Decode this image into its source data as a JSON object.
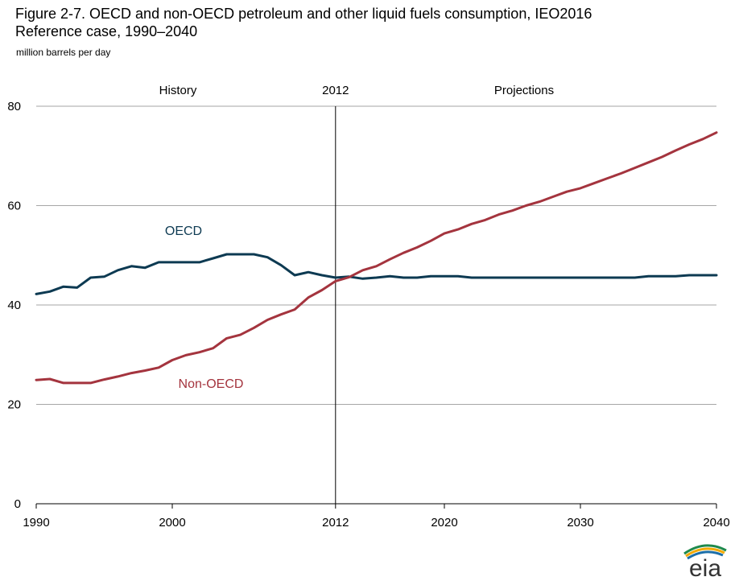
{
  "title_line1": "Figure 2-7. OECD and non-OECD petroleum and other liquid fuels consumption, IEO2016",
  "title_line2": "Reference case, 1990–2040",
  "units": "million barrels per day",
  "logo_text": "eia",
  "colors": {
    "oecd": "#0d3a52",
    "non_oecd": "#a4343e",
    "grid": "#a6a6a6",
    "axis": "#000000"
  },
  "chart_data": {
    "type": "line",
    "xlim": [
      1990,
      2040
    ],
    "ylim": [
      0,
      80
    ],
    "x_ticks": [
      "1990",
      "2000",
      "2012",
      "2020",
      "2030",
      "2040"
    ],
    "y_ticks": [
      "0",
      "20",
      "40",
      "60",
      "80"
    ],
    "grid": "horizontal",
    "divider": {
      "x": 2012,
      "label": "2012",
      "left_label": "History",
      "right_label": "Projections"
    },
    "x": [
      1990,
      1991,
      1992,
      1993,
      1994,
      1995,
      1996,
      1997,
      1998,
      1999,
      2000,
      2001,
      2002,
      2003,
      2004,
      2005,
      2006,
      2007,
      2008,
      2009,
      2010,
      2011,
      2012,
      2013,
      2014,
      2015,
      2016,
      2017,
      2018,
      2019,
      2020,
      2021,
      2022,
      2023,
      2024,
      2025,
      2026,
      2027,
      2028,
      2029,
      2030,
      2031,
      2032,
      2033,
      2034,
      2035,
      2036,
      2037,
      2038,
      2039,
      2040
    ],
    "series": [
      {
        "name": "OECD",
        "values": [
          42.2,
          42.7,
          43.7,
          43.5,
          45.5,
          45.7,
          47.0,
          47.8,
          47.5,
          48.6,
          48.6,
          48.6,
          48.6,
          49.4,
          50.2,
          50.2,
          50.2,
          49.6,
          48.0,
          46.0,
          46.6,
          46.0,
          45.5,
          45.7,
          45.3,
          45.5,
          45.8,
          45.5,
          45.5,
          45.8,
          45.8,
          45.8,
          45.5,
          45.5,
          45.5,
          45.5,
          45.5,
          45.5,
          45.5,
          45.5,
          45.5,
          45.5,
          45.5,
          45.5,
          45.5,
          45.8,
          45.8,
          45.8,
          46.0,
          46.0,
          46.0
        ]
      },
      {
        "name": "Non-OECD",
        "values": [
          24.9,
          25.1,
          24.3,
          24.3,
          24.3,
          25.0,
          25.6,
          26.3,
          26.8,
          27.4,
          28.9,
          29.9,
          30.5,
          31.3,
          33.3,
          34.0,
          35.4,
          37.0,
          38.1,
          39.1,
          41.5,
          43.0,
          44.8,
          45.6,
          47.0,
          47.8,
          49.2,
          50.5,
          51.6,
          52.9,
          54.4,
          55.2,
          56.3,
          57.1,
          58.2,
          59.0,
          60.0,
          60.8,
          61.8,
          62.8,
          63.5,
          64.5,
          65.5,
          66.5,
          67.6,
          68.7,
          69.8,
          71.1,
          72.3,
          73.4,
          74.7
        ]
      }
    ]
  }
}
